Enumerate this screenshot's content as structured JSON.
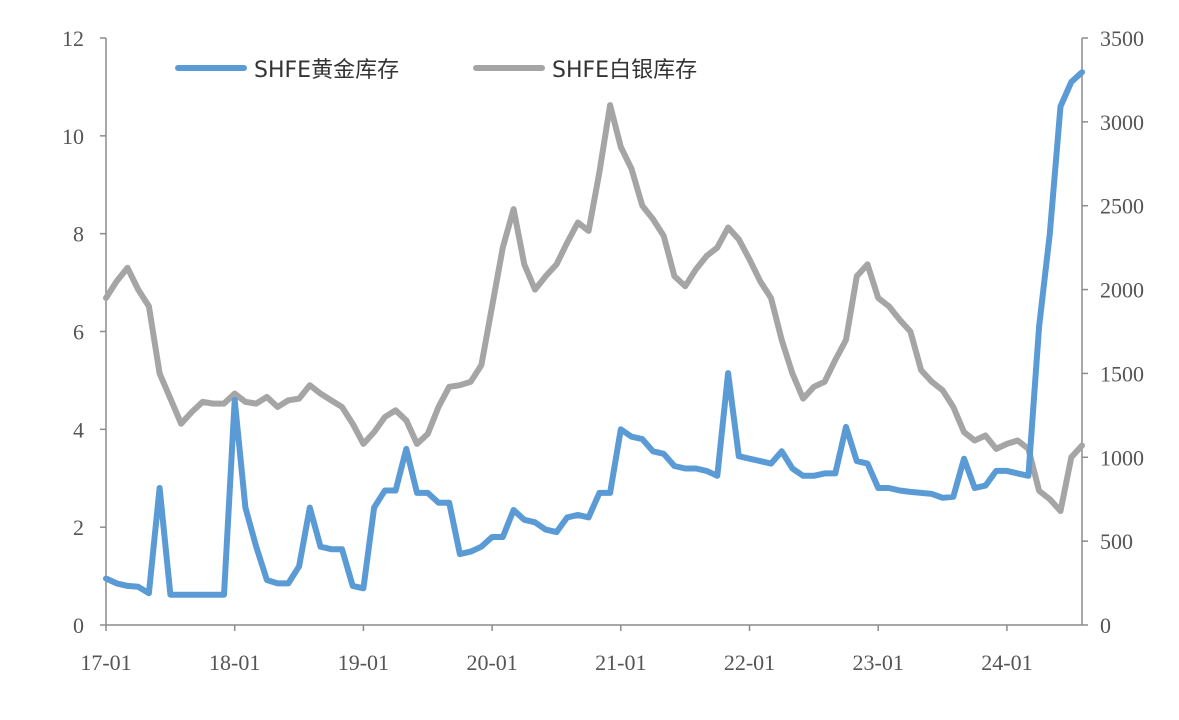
{
  "chart_data": {
    "type": "line",
    "x_tick_labels": [
      "17-01",
      "18-01",
      "19-01",
      "20-01",
      "21-01",
      "22-01",
      "23-01",
      "24-01"
    ],
    "x_range": [
      "17-01",
      "24-08"
    ],
    "y_left": {
      "range": [
        0,
        12
      ],
      "ticks": [
        0,
        2,
        4,
        6,
        8,
        10,
        12
      ]
    },
    "y_right": {
      "range": [
        0,
        3500
      ],
      "ticks": [
        0,
        500,
        1000,
        1500,
        2000,
        2500,
        3000,
        3500
      ]
    },
    "grid": false,
    "legend_position": "top-left",
    "series": [
      {
        "name": "SHFE黄金库存",
        "axis": "left",
        "color": "#5b9bd5",
        "points": [
          [
            "17-01",
            0.95
          ],
          [
            "17-02",
            0.85
          ],
          [
            "17-03",
            0.8
          ],
          [
            "17-04",
            0.78
          ],
          [
            "17-05",
            0.65
          ],
          [
            "17-06",
            2.8
          ],
          [
            "17-07",
            0.62
          ],
          [
            "17-09",
            0.62
          ],
          [
            "17-11",
            0.62
          ],
          [
            "17-12",
            0.62
          ],
          [
            "18-01",
            4.6
          ],
          [
            "18-02",
            2.4
          ],
          [
            "18-03",
            1.6
          ],
          [
            "18-04",
            0.92
          ],
          [
            "18-05",
            0.85
          ],
          [
            "18-06",
            0.85
          ],
          [
            "18-07",
            1.2
          ],
          [
            "18-08",
            2.4
          ],
          [
            "18-09",
            1.6
          ],
          [
            "18-10",
            1.55
          ],
          [
            "18-11",
            1.55
          ],
          [
            "18-12",
            0.8
          ],
          [
            "19-01",
            0.75
          ],
          [
            "19-02",
            2.4
          ],
          [
            "19-03",
            2.75
          ],
          [
            "19-04",
            2.75
          ],
          [
            "19-05",
            3.6
          ],
          [
            "19-06",
            2.7
          ],
          [
            "19-07",
            2.7
          ],
          [
            "19-08",
            2.5
          ],
          [
            "19-09",
            2.5
          ],
          [
            "19-10",
            1.45
          ],
          [
            "19-11",
            1.5
          ],
          [
            "19-12",
            1.6
          ],
          [
            "20-01",
            1.8
          ],
          [
            "20-02",
            1.8
          ],
          [
            "20-03",
            2.35
          ],
          [
            "20-04",
            2.15
          ],
          [
            "20-05",
            2.1
          ],
          [
            "20-06",
            1.95
          ],
          [
            "20-07",
            1.9
          ],
          [
            "20-08",
            2.2
          ],
          [
            "20-09",
            2.25
          ],
          [
            "20-10",
            2.2
          ],
          [
            "20-11",
            2.7
          ],
          [
            "20-12",
            2.7
          ],
          [
            "21-01",
            4.0
          ],
          [
            "21-02",
            3.85
          ],
          [
            "21-03",
            3.8
          ],
          [
            "21-04",
            3.55
          ],
          [
            "21-05",
            3.5
          ],
          [
            "21-06",
            3.25
          ],
          [
            "21-07",
            3.2
          ],
          [
            "21-08",
            3.2
          ],
          [
            "21-09",
            3.15
          ],
          [
            "21-10",
            3.05
          ],
          [
            "21-11",
            5.15
          ],
          [
            "21-12",
            3.45
          ],
          [
            "22-01",
            3.4
          ],
          [
            "22-02",
            3.35
          ],
          [
            "22-03",
            3.3
          ],
          [
            "22-04",
            3.55
          ],
          [
            "22-05",
            3.2
          ],
          [
            "22-06",
            3.05
          ],
          [
            "22-07",
            3.05
          ],
          [
            "22-08",
            3.1
          ],
          [
            "22-09",
            3.1
          ],
          [
            "22-10",
            4.05
          ],
          [
            "22-11",
            3.35
          ],
          [
            "22-12",
            3.3
          ],
          [
            "23-01",
            2.8
          ],
          [
            "23-02",
            2.8
          ],
          [
            "23-03",
            2.75
          ],
          [
            "23-04",
            2.72
          ],
          [
            "23-05",
            2.7
          ],
          [
            "23-06",
            2.68
          ],
          [
            "23-07",
            2.6
          ],
          [
            "23-08",
            2.62
          ],
          [
            "23-09",
            3.4
          ],
          [
            "23-10",
            2.8
          ],
          [
            "23-11",
            2.85
          ],
          [
            "23-12",
            3.15
          ],
          [
            "24-01",
            3.15
          ],
          [
            "24-02",
            3.1
          ],
          [
            "24-03",
            3.05
          ],
          [
            "24-04",
            6.1
          ],
          [
            "24-05",
            8.0
          ],
          [
            "24-06",
            10.6
          ],
          [
            "24-07",
            11.1
          ],
          [
            "24-08",
            11.3
          ]
        ]
      },
      {
        "name": "SHFE白银库存",
        "axis": "right",
        "color": "#a5a5a5",
        "points": [
          [
            "17-01",
            1950
          ],
          [
            "17-02",
            2050
          ],
          [
            "17-03",
            2130
          ],
          [
            "17-04",
            2000
          ],
          [
            "17-05",
            1900
          ],
          [
            "17-06",
            1500
          ],
          [
            "17-07",
            1350
          ],
          [
            "17-08",
            1200
          ],
          [
            "17-09",
            1270
          ],
          [
            "17-10",
            1330
          ],
          [
            "17-11",
            1320
          ],
          [
            "17-12",
            1320
          ],
          [
            "18-01",
            1380
          ],
          [
            "18-02",
            1330
          ],
          [
            "18-03",
            1320
          ],
          [
            "18-04",
            1360
          ],
          [
            "18-05",
            1300
          ],
          [
            "18-06",
            1340
          ],
          [
            "18-07",
            1350
          ],
          [
            "18-08",
            1430
          ],
          [
            "18-09",
            1380
          ],
          [
            "18-10",
            1340
          ],
          [
            "18-11",
            1300
          ],
          [
            "18-12",
            1200
          ],
          [
            "19-01",
            1080
          ],
          [
            "19-02",
            1150
          ],
          [
            "19-03",
            1240
          ],
          [
            "19-04",
            1280
          ],
          [
            "19-05",
            1220
          ],
          [
            "19-06",
            1080
          ],
          [
            "19-07",
            1140
          ],
          [
            "19-08",
            1300
          ],
          [
            "19-09",
            1420
          ],
          [
            "19-10",
            1430
          ],
          [
            "19-11",
            1450
          ],
          [
            "19-12",
            1550
          ],
          [
            "20-01",
            1900
          ],
          [
            "20-02",
            2250
          ],
          [
            "20-03",
            2480
          ],
          [
            "20-04",
            2150
          ],
          [
            "20-05",
            2000
          ],
          [
            "20-06",
            2080
          ],
          [
            "20-07",
            2150
          ],
          [
            "20-08",
            2280
          ],
          [
            "20-09",
            2400
          ],
          [
            "20-10",
            2350
          ],
          [
            "20-11",
            2700
          ],
          [
            "20-12",
            3100
          ],
          [
            "21-01",
            2850
          ],
          [
            "21-02",
            2720
          ],
          [
            "21-03",
            2500
          ],
          [
            "21-04",
            2420
          ],
          [
            "21-05",
            2320
          ],
          [
            "21-06",
            2080
          ],
          [
            "21-07",
            2020
          ],
          [
            "21-08",
            2120
          ],
          [
            "21-09",
            2200
          ],
          [
            "21-10",
            2250
          ],
          [
            "21-11",
            2370
          ],
          [
            "21-12",
            2300
          ],
          [
            "22-01",
            2180
          ],
          [
            "22-02",
            2050
          ],
          [
            "22-03",
            1950
          ],
          [
            "22-04",
            1700
          ],
          [
            "22-05",
            1500
          ],
          [
            "22-06",
            1350
          ],
          [
            "22-07",
            1420
          ],
          [
            "22-08",
            1450
          ],
          [
            "22-09",
            1580
          ],
          [
            "22-10",
            1700
          ],
          [
            "22-11",
            2080
          ],
          [
            "22-12",
            2150
          ],
          [
            "23-01",
            1950
          ],
          [
            "23-02",
            1900
          ],
          [
            "23-03",
            1820
          ],
          [
            "23-04",
            1750
          ],
          [
            "23-05",
            1520
          ],
          [
            "23-06",
            1450
          ],
          [
            "23-07",
            1400
          ],
          [
            "23-08",
            1300
          ],
          [
            "23-09",
            1150
          ],
          [
            "23-10",
            1100
          ],
          [
            "23-11",
            1130
          ],
          [
            "23-12",
            1050
          ],
          [
            "24-01",
            1080
          ],
          [
            "24-02",
            1100
          ],
          [
            "24-03",
            1050
          ],
          [
            "24-04",
            800
          ],
          [
            "24-05",
            750
          ],
          [
            "24-06",
            680
          ],
          [
            "24-07",
            1000
          ],
          [
            "24-08",
            1070
          ]
        ]
      }
    ]
  }
}
